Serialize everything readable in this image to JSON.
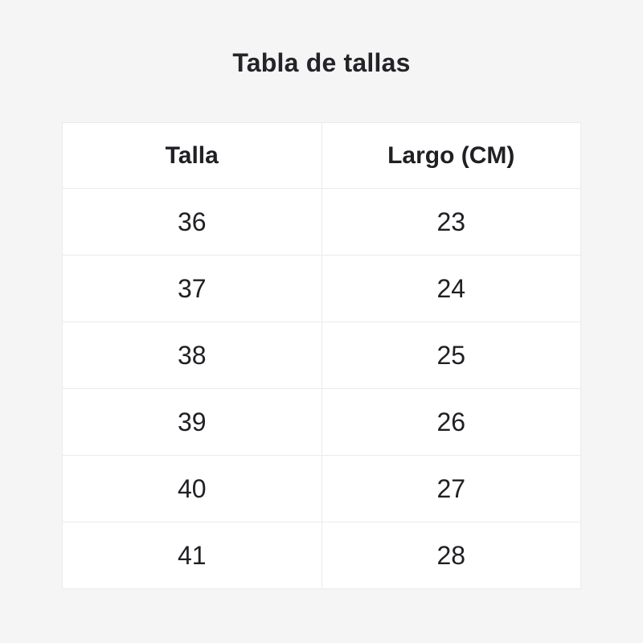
{
  "page": {
    "title": "Tabla de tallas",
    "background": "#f5f5f6"
  },
  "colors": {
    "cell_background": "#ffffff",
    "border": "#ebebeb",
    "text": "#1f1f24"
  },
  "table": {
    "headers": [
      "Talla",
      "Largo (CM)"
    ],
    "rows": [
      {
        "talla": "36",
        "largo": "23"
      },
      {
        "talla": "37",
        "largo": "24"
      },
      {
        "talla": "38",
        "largo": "25"
      },
      {
        "talla": "39",
        "largo": "26"
      },
      {
        "talla": "40",
        "largo": "27"
      },
      {
        "talla": "41",
        "largo": "28"
      }
    ]
  },
  "chart_data": {
    "type": "table",
    "title": "Tabla de tallas",
    "columns": [
      "Talla",
      "Largo (CM)"
    ],
    "rows": [
      [
        36,
        23
      ],
      [
        37,
        24
      ],
      [
        38,
        25
      ],
      [
        39,
        26
      ],
      [
        40,
        27
      ],
      [
        41,
        28
      ]
    ]
  }
}
